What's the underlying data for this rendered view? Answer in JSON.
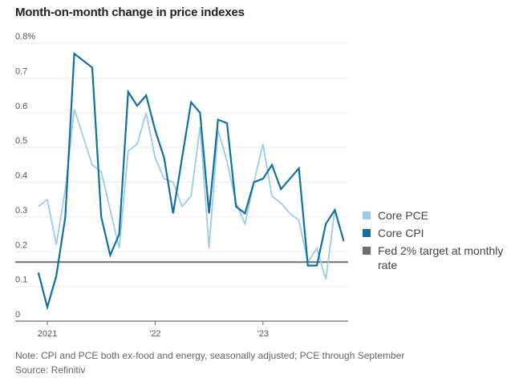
{
  "chart_data": {
    "type": "line",
    "title": "Month-on-month change in price indexes",
    "xlabel": "",
    "ylabel": "",
    "ylim": [
      0,
      0.8
    ],
    "y_ticks": [
      {
        "value": 0,
        "label": "0"
      },
      {
        "value": 0.1,
        "label": "0.1"
      },
      {
        "value": 0.2,
        "label": "0.2"
      },
      {
        "value": 0.3,
        "label": "0.3"
      },
      {
        "value": 0.4,
        "label": "0.4"
      },
      {
        "value": 0.5,
        "label": "0.5"
      },
      {
        "value": 0.6,
        "label": "0.6"
      },
      {
        "value": 0.7,
        "label": "0.7"
      },
      {
        "value": 0.8,
        "label": "0.8%"
      }
    ],
    "x_range": [
      "2020-11",
      "2023-11"
    ],
    "x_ticks": [
      {
        "month": "2021-01",
        "label": "2021"
      },
      {
        "month": "2022-01",
        "label": "'22"
      },
      {
        "month": "2023-01",
        "label": "'23"
      }
    ],
    "grid": true,
    "legend_position": "right",
    "x": [
      "2020-12",
      "2021-01",
      "2021-02",
      "2021-03",
      "2021-04",
      "2021-05",
      "2021-06",
      "2021-07",
      "2021-08",
      "2021-09",
      "2021-10",
      "2021-11",
      "2021-12",
      "2022-01",
      "2022-02",
      "2022-03",
      "2022-04",
      "2022-05",
      "2022-06",
      "2022-07",
      "2022-08",
      "2022-09",
      "2022-10",
      "2022-11",
      "2022-12",
      "2023-01",
      "2023-02",
      "2023-03",
      "2023-04",
      "2023-05",
      "2023-06",
      "2023-07",
      "2023-08",
      "2023-09",
      "2023-10"
    ],
    "series": [
      {
        "name": "Core PCE",
        "color": "#9dcbe8",
        "values": [
          0.33,
          0.35,
          0.22,
          0.38,
          0.61,
          0.53,
          0.45,
          0.43,
          0.32,
          0.21,
          0.49,
          0.51,
          0.6,
          0.47,
          0.41,
          0.4,
          0.33,
          0.36,
          0.56,
          0.21,
          0.55,
          0.46,
          0.34,
          0.28,
          0.4,
          0.51,
          0.36,
          0.34,
          0.31,
          0.29,
          0.17,
          0.21,
          0.12,
          0.32,
          null
        ]
      },
      {
        "name": "Core CPI",
        "color": "#13709e",
        "values": [
          0.14,
          0.04,
          0.13,
          0.3,
          0.77,
          0.75,
          0.73,
          0.3,
          0.19,
          0.25,
          0.66,
          0.62,
          0.65,
          0.55,
          0.47,
          0.31,
          0.47,
          0.63,
          0.6,
          0.31,
          0.58,
          0.57,
          0.33,
          0.31,
          0.4,
          0.41,
          0.45,
          0.38,
          0.41,
          0.44,
          0.16,
          0.16,
          0.28,
          0.32,
          0.23
        ]
      }
    ],
    "reference_line": {
      "name": "Fed 2% target at monthly rate",
      "value": 0.17,
      "color": "#6e6e6e"
    }
  },
  "legend": [
    {
      "label": "Core PCE",
      "color": "#9dcbe8"
    },
    {
      "label": "Core CPI",
      "color": "#13709e"
    },
    {
      "label": "Fed 2% target at monthly rate",
      "color": "#6e6e6e"
    }
  ],
  "note": "Note: CPI and PCE both ex-food and energy, seasonally adjusted; PCE through September",
  "source": "Source: Refinitiv"
}
